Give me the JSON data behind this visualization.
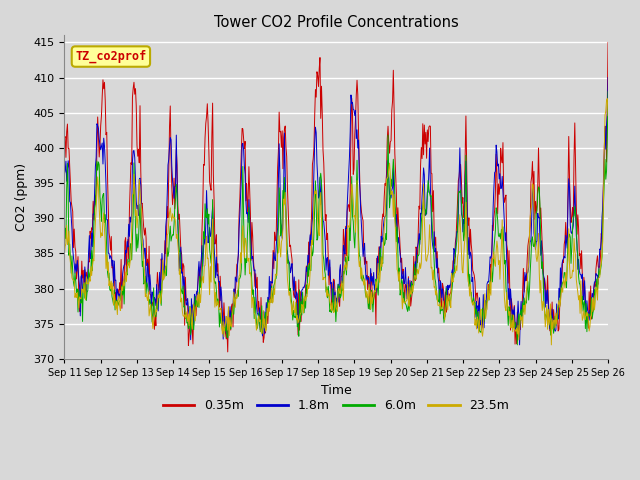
{
  "title": "Tower CO2 Profile Concentrations",
  "xlabel": "Time",
  "ylabel": "CO2 (ppm)",
  "ylim": [
    370,
    416
  ],
  "yticks": [
    370,
    375,
    380,
    385,
    390,
    395,
    400,
    405,
    410,
    415
  ],
  "legend_label": "TZ_co2prof",
  "legend_box_color": "#ffff99",
  "legend_box_border": "#bbaa00",
  "series_labels": [
    "0.35m",
    "1.8m",
    "6.0m",
    "23.5m"
  ],
  "series_colors": [
    "#cc0000",
    "#0000cc",
    "#00aa00",
    "#ccaa00"
  ],
  "background_color": "#d8d8d8",
  "plot_bg_color": "#d8d8d8",
  "grid_color": "#ffffff",
  "tick_label_dates": [
    "Sep 11",
    "Sep 12",
    "Sep 13",
    "Sep 14",
    "Sep 15",
    "Sep 16",
    "Sep 17",
    "Sep 18",
    "Sep 19",
    "Sep 20",
    "Sep 21",
    "Sep 22",
    "Sep 23",
    "Sep 24",
    "Sep 25",
    "Sep 26"
  ]
}
